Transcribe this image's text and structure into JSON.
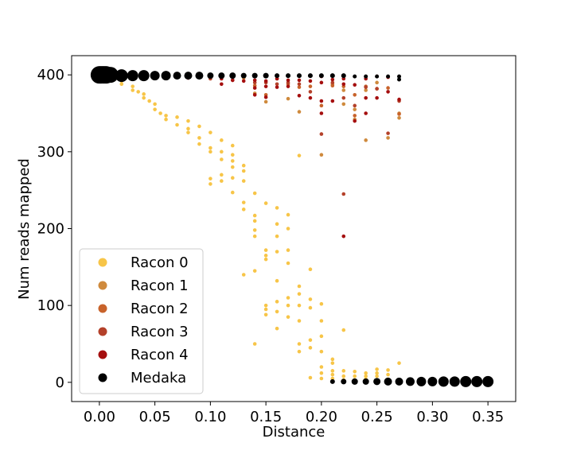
{
  "chart_data": {
    "type": "scatter",
    "title": "",
    "xlabel": "Distance",
    "ylabel": "Num reads mapped",
    "xlim": [
      -0.025,
      0.375
    ],
    "ylim": [
      -25,
      425
    ],
    "x_ticks": [
      0.0,
      0.05,
      0.1,
      0.15,
      0.2,
      0.25,
      0.3,
      0.35
    ],
    "x_tick_labels": [
      "0.00",
      "0.05",
      "0.10",
      "0.15",
      "0.20",
      "0.25",
      "0.30",
      "0.35"
    ],
    "y_ticks": [
      0,
      100,
      200,
      300,
      400
    ],
    "y_tick_labels": [
      "0",
      "100",
      "200",
      "300",
      "400"
    ],
    "grid": false,
    "legend_position": "lower-left",
    "series": [
      {
        "name": "Racon 0",
        "color": "#F7C548",
        "points": [
          [
            0.0,
            400
          ],
          [
            0.005,
            399
          ],
          [
            0.01,
            398
          ],
          [
            0.01,
            396
          ],
          [
            0.02,
            392
          ],
          [
            0.02,
            388
          ],
          [
            0.03,
            385
          ],
          [
            0.03,
            380
          ],
          [
            0.035,
            378
          ],
          [
            0.04,
            375
          ],
          [
            0.04,
            370
          ],
          [
            0.045,
            366
          ],
          [
            0.05,
            362
          ],
          [
            0.05,
            355
          ],
          [
            0.055,
            350
          ],
          [
            0.06,
            347
          ],
          [
            0.06,
            342
          ],
          [
            0.07,
            345
          ],
          [
            0.07,
            335
          ],
          [
            0.08,
            340
          ],
          [
            0.08,
            330
          ],
          [
            0.08,
            325
          ],
          [
            0.09,
            333
          ],
          [
            0.09,
            318
          ],
          [
            0.09,
            310
          ],
          [
            0.1,
            325
          ],
          [
            0.1,
            305
          ],
          [
            0.1,
            300
          ],
          [
            0.1,
            265
          ],
          [
            0.1,
            258
          ],
          [
            0.11,
            315
          ],
          [
            0.11,
            300
          ],
          [
            0.11,
            290
          ],
          [
            0.11,
            270
          ],
          [
            0.11,
            262
          ],
          [
            0.12,
            308
          ],
          [
            0.12,
            296
          ],
          [
            0.12,
            288
          ],
          [
            0.12,
            280
          ],
          [
            0.12,
            266
          ],
          [
            0.12,
            247
          ],
          [
            0.13,
            282
          ],
          [
            0.13,
            275
          ],
          [
            0.13,
            262
          ],
          [
            0.13,
            234
          ],
          [
            0.13,
            225
          ],
          [
            0.13,
            140
          ],
          [
            0.14,
            246
          ],
          [
            0.14,
            217
          ],
          [
            0.14,
            210
          ],
          [
            0.14,
            198
          ],
          [
            0.14,
            190
          ],
          [
            0.14,
            145
          ],
          [
            0.14,
            50
          ],
          [
            0.15,
            233
          ],
          [
            0.15,
            172
          ],
          [
            0.15,
            165
          ],
          [
            0.15,
            160
          ],
          [
            0.15,
            100
          ],
          [
            0.15,
            95
          ],
          [
            0.15,
            88
          ],
          [
            0.16,
            227
          ],
          [
            0.16,
            206
          ],
          [
            0.16,
            190
          ],
          [
            0.16,
            170
          ],
          [
            0.16,
            132
          ],
          [
            0.16,
            105
          ],
          [
            0.16,
            92
          ],
          [
            0.16,
            70
          ],
          [
            0.17,
            218
          ],
          [
            0.17,
            200
          ],
          [
            0.17,
            172
          ],
          [
            0.17,
            155
          ],
          [
            0.17,
            110
          ],
          [
            0.17,
            100
          ],
          [
            0.17,
            85
          ],
          [
            0.18,
            295
          ],
          [
            0.18,
            125
          ],
          [
            0.18,
            115
          ],
          [
            0.18,
            100
          ],
          [
            0.18,
            80
          ],
          [
            0.18,
            50
          ],
          [
            0.18,
            40
          ],
          [
            0.19,
            147
          ],
          [
            0.19,
            108
          ],
          [
            0.19,
            97
          ],
          [
            0.19,
            55
          ],
          [
            0.19,
            45
          ],
          [
            0.19,
            6
          ],
          [
            0.2,
            102
          ],
          [
            0.2,
            80
          ],
          [
            0.2,
            60
          ],
          [
            0.2,
            40
          ],
          [
            0.2,
            20
          ],
          [
            0.2,
            12
          ],
          [
            0.2,
            5
          ],
          [
            0.21,
            30
          ],
          [
            0.21,
            25
          ],
          [
            0.21,
            15
          ],
          [
            0.21,
            10
          ],
          [
            0.21,
            5
          ],
          [
            0.22,
            68
          ],
          [
            0.22,
            15
          ],
          [
            0.22,
            8
          ],
          [
            0.22,
            3
          ],
          [
            0.23,
            14
          ],
          [
            0.23,
            8
          ],
          [
            0.23,
            3
          ],
          [
            0.24,
            12
          ],
          [
            0.24,
            8
          ],
          [
            0.24,
            4
          ],
          [
            0.25,
            17
          ],
          [
            0.25,
            12
          ],
          [
            0.25,
            8
          ],
          [
            0.26,
            16
          ],
          [
            0.26,
            10
          ],
          [
            0.26,
            4
          ],
          [
            0.27,
            25
          ]
        ]
      },
      {
        "name": "Racon 1",
        "color": "#CF8A3D",
        "points": [
          [
            0.0,
            399
          ],
          [
            0.01,
            397
          ],
          [
            0.02,
            396
          ],
          [
            0.05,
            396
          ],
          [
            0.1,
            397
          ],
          [
            0.13,
            396
          ],
          [
            0.14,
            376
          ],
          [
            0.15,
            365
          ],
          [
            0.17,
            369
          ],
          [
            0.18,
            352
          ],
          [
            0.2,
            296
          ],
          [
            0.21,
            388
          ],
          [
            0.22,
            380
          ],
          [
            0.22,
            362
          ],
          [
            0.23,
            355
          ],
          [
            0.23,
            342
          ],
          [
            0.24,
            380
          ],
          [
            0.24,
            315
          ],
          [
            0.25,
            390
          ],
          [
            0.26,
            318
          ],
          [
            0.27,
            350
          ],
          [
            0.27,
            344
          ]
        ]
      },
      {
        "name": "Racon 2",
        "color": "#C8632B",
        "points": [
          [
            0.0,
            398
          ],
          [
            0.02,
            397
          ],
          [
            0.04,
            396
          ],
          [
            0.1,
            396
          ],
          [
            0.14,
            386
          ],
          [
            0.15,
            374
          ],
          [
            0.16,
            395
          ],
          [
            0.17,
            388
          ],
          [
            0.18,
            384
          ],
          [
            0.19,
            385
          ],
          [
            0.2,
            360
          ],
          [
            0.21,
            386
          ],
          [
            0.22,
            385
          ],
          [
            0.23,
            374
          ],
          [
            0.23,
            347
          ],
          [
            0.24,
            385
          ],
          [
            0.25,
            382
          ],
          [
            0.26,
            383
          ],
          [
            0.27,
            349
          ]
        ]
      },
      {
        "name": "Racon 3",
        "color": "#B4412A",
        "points": [
          [
            0.0,
            398
          ],
          [
            0.03,
            397
          ],
          [
            0.06,
            396
          ],
          [
            0.1,
            395
          ],
          [
            0.12,
            393
          ],
          [
            0.14,
            390
          ],
          [
            0.15,
            390
          ],
          [
            0.16,
            388
          ],
          [
            0.17,
            390
          ],
          [
            0.18,
            388
          ],
          [
            0.19,
            378
          ],
          [
            0.2,
            323
          ],
          [
            0.21,
            390
          ],
          [
            0.22,
            370
          ],
          [
            0.22,
            245
          ],
          [
            0.23,
            360
          ],
          [
            0.24,
            384
          ],
          [
            0.25,
            382
          ],
          [
            0.26,
            324
          ],
          [
            0.27,
            366
          ]
        ]
      },
      {
        "name": "Racon 4",
        "color": "#A50F0F",
        "points": [
          [
            0.0,
            398
          ],
          [
            0.01,
            397
          ],
          [
            0.03,
            396
          ],
          [
            0.05,
            397
          ],
          [
            0.08,
            396
          ],
          [
            0.11,
            395
          ],
          [
            0.11,
            388
          ],
          [
            0.12,
            393
          ],
          [
            0.13,
            392
          ],
          [
            0.14,
            393
          ],
          [
            0.14,
            383
          ],
          [
            0.14,
            374
          ],
          [
            0.15,
            392
          ],
          [
            0.15,
            385
          ],
          [
            0.15,
            371
          ],
          [
            0.16,
            395
          ],
          [
            0.16,
            384
          ],
          [
            0.17,
            393
          ],
          [
            0.17,
            385
          ],
          [
            0.18,
            393
          ],
          [
            0.18,
            373
          ],
          [
            0.19,
            392
          ],
          [
            0.19,
            370
          ],
          [
            0.2,
            398
          ],
          [
            0.2,
            390
          ],
          [
            0.2,
            366
          ],
          [
            0.2,
            350
          ],
          [
            0.21,
            394
          ],
          [
            0.21,
            366
          ],
          [
            0.22,
            395
          ],
          [
            0.22,
            388
          ],
          [
            0.22,
            190
          ],
          [
            0.23,
            387
          ],
          [
            0.23,
            340
          ],
          [
            0.24,
            395
          ],
          [
            0.24,
            370
          ],
          [
            0.24,
            350
          ],
          [
            0.25,
            398
          ],
          [
            0.25,
            370
          ],
          [
            0.26,
            397
          ],
          [
            0.26,
            378
          ],
          [
            0.27,
            368
          ]
        ]
      },
      {
        "name": "Medaka",
        "color": "#000000",
        "points": [
          [
            0.0,
            400,
            11
          ],
          [
            0.002,
            400,
            11
          ],
          [
            0.004,
            400,
            11
          ],
          [
            0.006,
            400,
            11
          ],
          [
            0.008,
            400,
            10
          ],
          [
            0.01,
            400,
            10
          ],
          [
            0.02,
            399,
            8
          ],
          [
            0.03,
            399,
            7
          ],
          [
            0.04,
            399,
            7
          ],
          [
            0.05,
            399,
            6
          ],
          [
            0.06,
            399,
            6
          ],
          [
            0.07,
            399,
            5
          ],
          [
            0.08,
            399,
            5
          ],
          [
            0.09,
            399,
            5
          ],
          [
            0.1,
            399,
            4
          ],
          [
            0.11,
            399,
            4
          ],
          [
            0.12,
            399,
            4
          ],
          [
            0.13,
            399,
            3.5
          ],
          [
            0.14,
            399,
            3.5
          ],
          [
            0.15,
            399,
            3.5
          ],
          [
            0.16,
            399,
            3
          ],
          [
            0.17,
            399,
            3
          ],
          [
            0.18,
            399,
            3
          ],
          [
            0.19,
            399,
            3
          ],
          [
            0.2,
            399,
            3
          ],
          [
            0.21,
            399,
            3
          ],
          [
            0.22,
            399,
            3
          ],
          [
            0.23,
            398,
            2.5
          ],
          [
            0.24,
            398,
            2.5
          ],
          [
            0.25,
            398,
            2.5
          ],
          [
            0.26,
            398,
            2.5
          ],
          [
            0.27,
            398,
            2.5
          ],
          [
            0.27,
            394,
            2.5
          ],
          [
            0.21,
            1,
            3
          ],
          [
            0.22,
            1,
            3.5
          ],
          [
            0.23,
            1,
            4
          ],
          [
            0.24,
            1,
            4
          ],
          [
            0.25,
            1,
            4.5
          ],
          [
            0.26,
            1,
            5
          ],
          [
            0.27,
            1,
            5
          ],
          [
            0.28,
            1,
            5.5
          ],
          [
            0.29,
            1,
            6
          ],
          [
            0.3,
            1,
            6
          ],
          [
            0.31,
            1,
            6.5
          ],
          [
            0.32,
            1,
            6.5
          ],
          [
            0.33,
            1,
            7
          ],
          [
            0.34,
            1,
            7
          ],
          [
            0.35,
            1,
            7
          ]
        ]
      }
    ]
  }
}
